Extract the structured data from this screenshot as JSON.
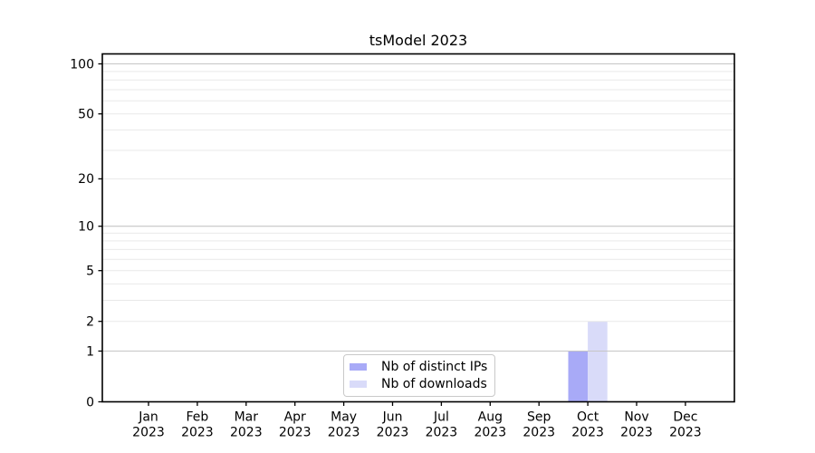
{
  "chart_data": {
    "type": "bar",
    "title": "tsModel 2023",
    "months": [
      "Jan",
      "Feb",
      "Mar",
      "Apr",
      "May",
      "Jun",
      "Jul",
      "Aug",
      "Sep",
      "Oct",
      "Nov",
      "Dec"
    ],
    "year": "2023",
    "categories": [
      "Jan 2023",
      "Feb 2023",
      "Mar 2023",
      "Apr 2023",
      "May 2023",
      "Jun 2023",
      "Jul 2023",
      "Aug 2023",
      "Sep 2023",
      "Oct 2023",
      "Nov 2023",
      "Dec 2023"
    ],
    "series": [
      {
        "name": "Nb of distinct IPs",
        "color": "#a8aaf7",
        "values": [
          0,
          0,
          0,
          0,
          0,
          0,
          0,
          0,
          0,
          1,
          0,
          0
        ]
      },
      {
        "name": "Nb of downloads",
        "color": "#d9dbf9",
        "values": [
          0,
          0,
          0,
          0,
          0,
          0,
          0,
          0,
          0,
          2,
          0,
          0
        ]
      }
    ],
    "y_scale": "log10(1+v)",
    "y_ticks": [
      0,
      1,
      2,
      5,
      10,
      20,
      50,
      100
    ],
    "y_major_gridlines": [
      1,
      10,
      100
    ],
    "y_minor_gridlines": [
      2,
      3,
      4,
      5,
      6,
      7,
      8,
      9,
      20,
      30,
      40,
      50,
      60,
      70,
      80,
      90
    ],
    "ylim": [
      0,
      115
    ],
    "grid": true,
    "legend_position": "lower center",
    "colors": {
      "axis": "#000000",
      "grid_major": "#c6c6c6",
      "grid_minor": "#e9e9e9",
      "text": "#000000"
    }
  }
}
